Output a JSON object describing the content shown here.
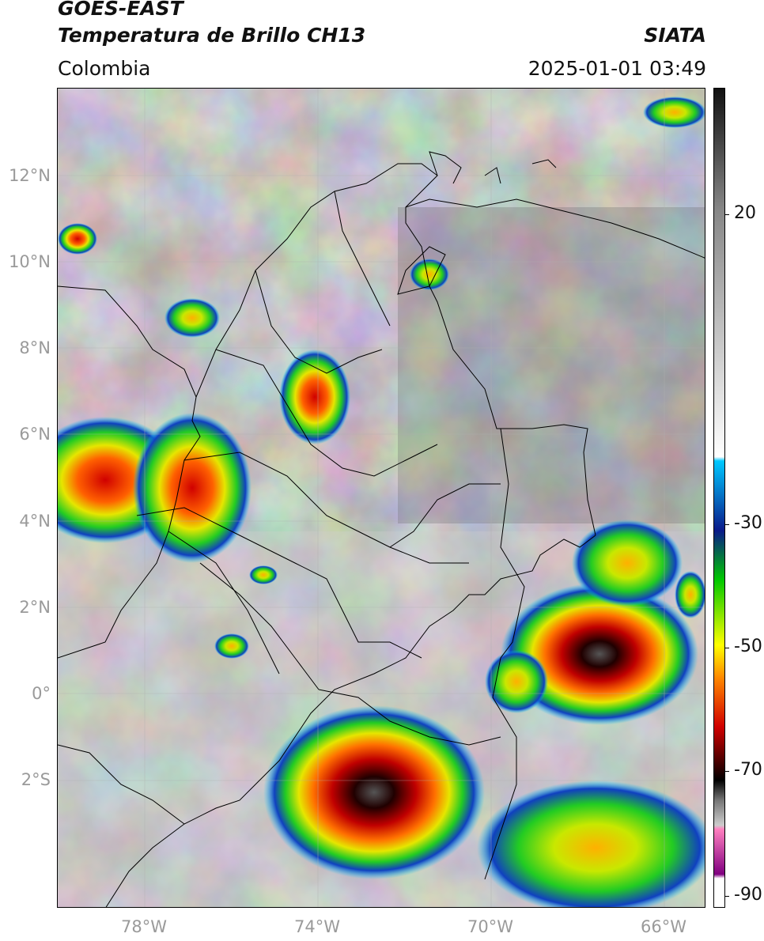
{
  "header": {
    "title_line1": "GOES-EAST",
    "title_line2": "Temperatura de Brillo CH13",
    "agency": "SIATA",
    "region": "Colombia",
    "datetime": "2025-01-01 03:49"
  },
  "map": {
    "lat_labels": [
      "12°N",
      "10°N",
      "8°N",
      "6°N",
      "4°N",
      "2°N",
      "0°",
      "2°S"
    ],
    "lon_labels": [
      "78°W",
      "74°W",
      "70°W",
      "66°W"
    ],
    "extent": {
      "lon_min": -80,
      "lon_max": -65,
      "lat_min": -5,
      "lat_max": 14
    }
  },
  "colorbar": {
    "labels": [
      "20",
      "-30",
      "-50",
      "-70",
      "-90"
    ],
    "stops": [
      "#111111",
      "#888888",
      "#ffffff",
      "#00c8ff",
      "#0a1a8a",
      "#00c800",
      "#ffff00",
      "#ff8800",
      "#d00000",
      "#500000",
      "#000000",
      "#777777",
      "#cccccc",
      "#ff80c0",
      "#800080",
      "#ffffff"
    ]
  }
}
